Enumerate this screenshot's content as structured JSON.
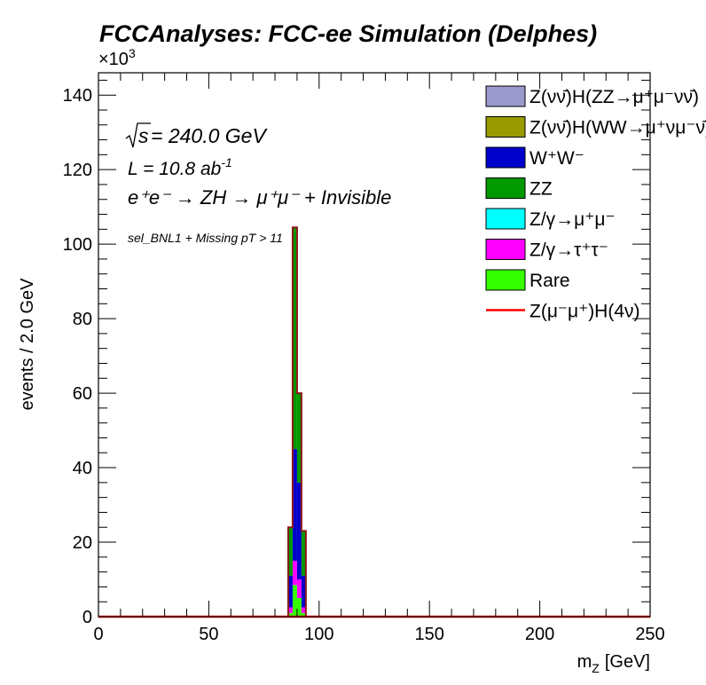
{
  "chart_data": {
    "type": "bar",
    "stacked": true,
    "histogram": true,
    "title": "FCCAnalyses: FCC-ee Simulation (Delphes)",
    "xlabel": "m",
    "xlabel_sub": "Z",
    "xlabel_unit": "[GeV]",
    "ylabel": "events / 2.0 GeV",
    "y_multiplier_base": "×10",
    "y_multiplier_exp": "3",
    "xlim": [
      0,
      250
    ],
    "ylim": [
      0,
      146
    ],
    "x_ticks": [
      0,
      50,
      100,
      150,
      200,
      250
    ],
    "y_ticks": [
      0,
      20,
      40,
      60,
      80,
      100,
      120,
      140
    ],
    "bin_width": 2.0,
    "bin_edges": [
      86,
      88,
      90,
      92,
      94,
      96
    ],
    "annotations": {
      "sqrt_s_value": " = 240.0 GeV",
      "lumi_prefix": "L = 10.8 ab",
      "lumi_exp": "-1",
      "process": "e⁺e⁻ → ZH → μ⁺μ⁻ + Invisible",
      "selection": "sel_BNL1 + Missing pT > 11"
    },
    "series": [
      {
        "name": "Rare",
        "color": "#33ff00",
        "values": [
          1.0,
          8.5,
          5.0,
          1.0,
          0.0
        ]
      },
      {
        "name": "Z/γ→τ⁺τ⁻",
        "color": "#ff00ff",
        "values": [
          1.5,
          6.5,
          5.0,
          1.5,
          0.0
        ]
      },
      {
        "name": "Z/γ→μ⁺μ⁻",
        "color": "#00ffff",
        "values": [
          0.0,
          0.0,
          0.0,
          0.0,
          0.0
        ]
      },
      {
        "name": "W⁺W⁻",
        "color": "#0000cc",
        "values": [
          8.5,
          30.0,
          26.0,
          8.5,
          0.0
        ]
      },
      {
        "name": "ZZ",
        "color": "#009900",
        "values": [
          13.0,
          59.5,
          24.0,
          12.0,
          0.0
        ]
      },
      {
        "name": "Z(νν̄)H(WW→μ⁺νμ⁻ν̄)",
        "color": "#999900",
        "values": [
          0.0,
          0.0,
          0.0,
          0.0,
          0.0
        ]
      },
      {
        "name": "Z(νν̄)H(ZZ→μ⁺μ⁻νν̄)",
        "color": "#9999cc",
        "values": [
          0.0,
          0.0,
          0.0,
          0.0,
          0.0
        ]
      }
    ],
    "signal": {
      "name": "Z(μ⁻μ⁺)H(4ν)",
      "color": "#ff0000",
      "values": [
        0.0,
        0.0,
        0.0,
        0.0,
        0.0
      ]
    },
    "legend": {
      "placement": "top-right",
      "entries": [
        {
          "label": "Z(νν̄)H(ZZ→μ⁺μ⁻νν̄)",
          "color": "#9999cc",
          "kind": "box"
        },
        {
          "label": "Z(νν̄)H(WW→μ⁺νμ⁻ν̄)",
          "color": "#999900",
          "kind": "box"
        },
        {
          "label": "W⁺W⁻",
          "color": "#0000cc",
          "kind": "box"
        },
        {
          "label": "ZZ",
          "color": "#009900",
          "kind": "box"
        },
        {
          "label": "Z/γ→μ⁺μ⁻",
          "color": "#00ffff",
          "kind": "box"
        },
        {
          "label": "Z/γ→τ⁺τ⁻",
          "color": "#ff00ff",
          "kind": "box"
        },
        {
          "label": "Rare",
          "color": "#33ff00",
          "kind": "box"
        },
        {
          "label": "Z(μ⁻μ⁺)H(4ν)",
          "color": "#ff0000",
          "kind": "line"
        }
      ]
    },
    "grid": false
  }
}
